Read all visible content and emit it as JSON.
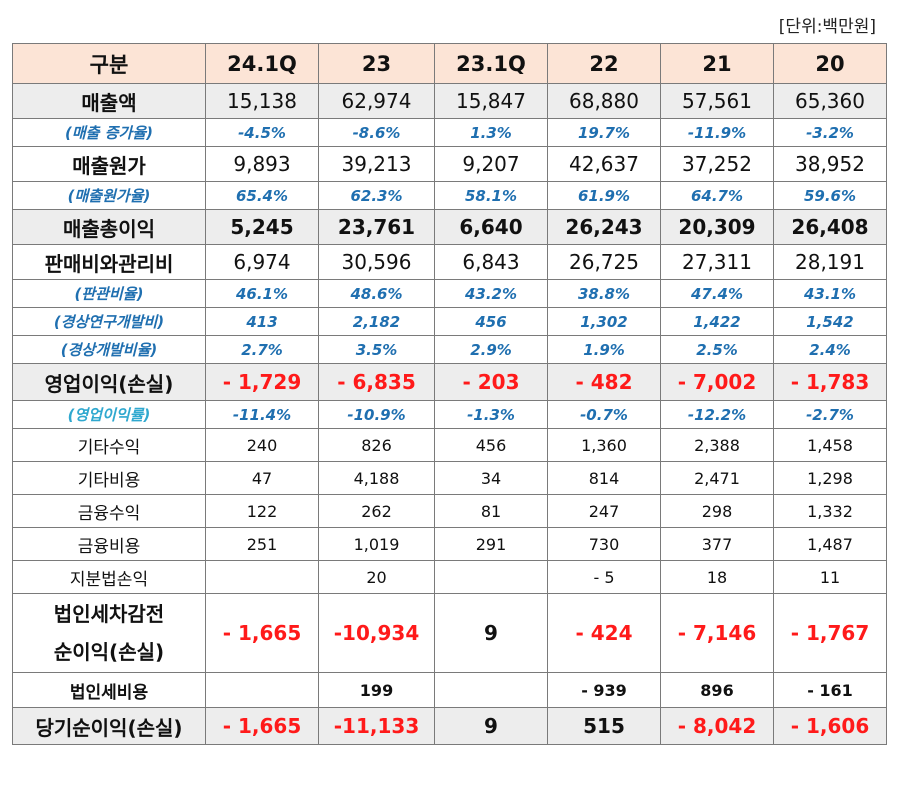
{
  "unit_label": "[단위:백만원]",
  "header": [
    "구분",
    "24.1Q",
    "23",
    "23.1Q",
    "22",
    "21",
    "20"
  ],
  "rows": {
    "sales": {
      "label": "매출액",
      "values": [
        "15,138",
        "62,974",
        "15,847",
        "68,880",
        "57,561",
        "65,360"
      ]
    },
    "sales_growth": {
      "label": "(매출 증가율)",
      "values": [
        "-4.5%",
        "-8.6%",
        "1.3%",
        "19.7%",
        "-11.9%",
        "-3.2%"
      ]
    },
    "cogs": {
      "label": "매출원가",
      "values": [
        "9,893",
        "39,213",
        "9,207",
        "42,637",
        "37,252",
        "38,952"
      ]
    },
    "cogs_ratio": {
      "label": "(매출원가율)",
      "values": [
        "65.4%",
        "62.3%",
        "58.1%",
        "61.9%",
        "64.7%",
        "59.6%"
      ]
    },
    "gross_profit": {
      "label": "매출총이익",
      "values": [
        "5,245",
        "23,761",
        "6,640",
        "26,243",
        "20,309",
        "26,408"
      ]
    },
    "sga": {
      "label": "판매비와관리비",
      "values": [
        "6,974",
        "30,596",
        "6,843",
        "26,725",
        "27,311",
        "28,191"
      ]
    },
    "sga_ratio": {
      "label": "(판관비율)",
      "values": [
        "46.1%",
        "48.6%",
        "43.2%",
        "38.8%",
        "47.4%",
        "43.1%"
      ]
    },
    "rnd": {
      "label": "(경상연구개발비)",
      "values": [
        "413",
        "2,182",
        "456",
        "1,302",
        "1,422",
        "1,542"
      ]
    },
    "rnd_ratio": {
      "label": "(경상개발비율)",
      "values": [
        "2.7%",
        "3.5%",
        "2.9%",
        "1.9%",
        "2.5%",
        "2.4%"
      ]
    },
    "op_income": {
      "label": "영업이익(손실)",
      "values": [
        "- 1,729",
        "- 6,835",
        "- 203",
        "- 482",
        "- 7,002",
        "- 1,783"
      ]
    },
    "op_margin": {
      "label": "(영업이익률)",
      "values": [
        "-11.4%",
        "-10.9%",
        "-1.3%",
        "-0.7%",
        "-12.2%",
        "-2.7%"
      ]
    },
    "other_income": {
      "label": "기타수익",
      "values": [
        "240",
        "826",
        "456",
        "1,360",
        "2,388",
        "1,458"
      ]
    },
    "other_expense": {
      "label": "기타비용",
      "values": [
        "47",
        "4,188",
        "34",
        "814",
        "2,471",
        "1,298"
      ]
    },
    "fin_income": {
      "label": "금융수익",
      "values": [
        "122",
        "262",
        "81",
        "247",
        "298",
        "1,332"
      ]
    },
    "fin_expense": {
      "label": "금융비용",
      "values": [
        "251",
        "1,019",
        "291",
        "730",
        "377",
        "1,487"
      ]
    },
    "equity_method": {
      "label": "지분법손익",
      "values": [
        "",
        "20",
        "",
        "- 5",
        "18",
        "11"
      ]
    },
    "pretax": {
      "label_line1": "법인세차감전",
      "label_line2": "순이익(손실)",
      "values": [
        "- 1,665",
        "-10,934",
        "9",
        "- 424",
        "- 7,146",
        "- 1,767"
      ]
    },
    "tax": {
      "label": "법인세비용",
      "values": [
        "",
        "199",
        "",
        "- 939",
        "896",
        "- 161"
      ]
    },
    "net_income": {
      "label": "당기순이익(손실)",
      "values": [
        "- 1,665",
        "-11,133",
        "9",
        "515",
        "- 8,042",
        "- 1,606"
      ]
    }
  }
}
